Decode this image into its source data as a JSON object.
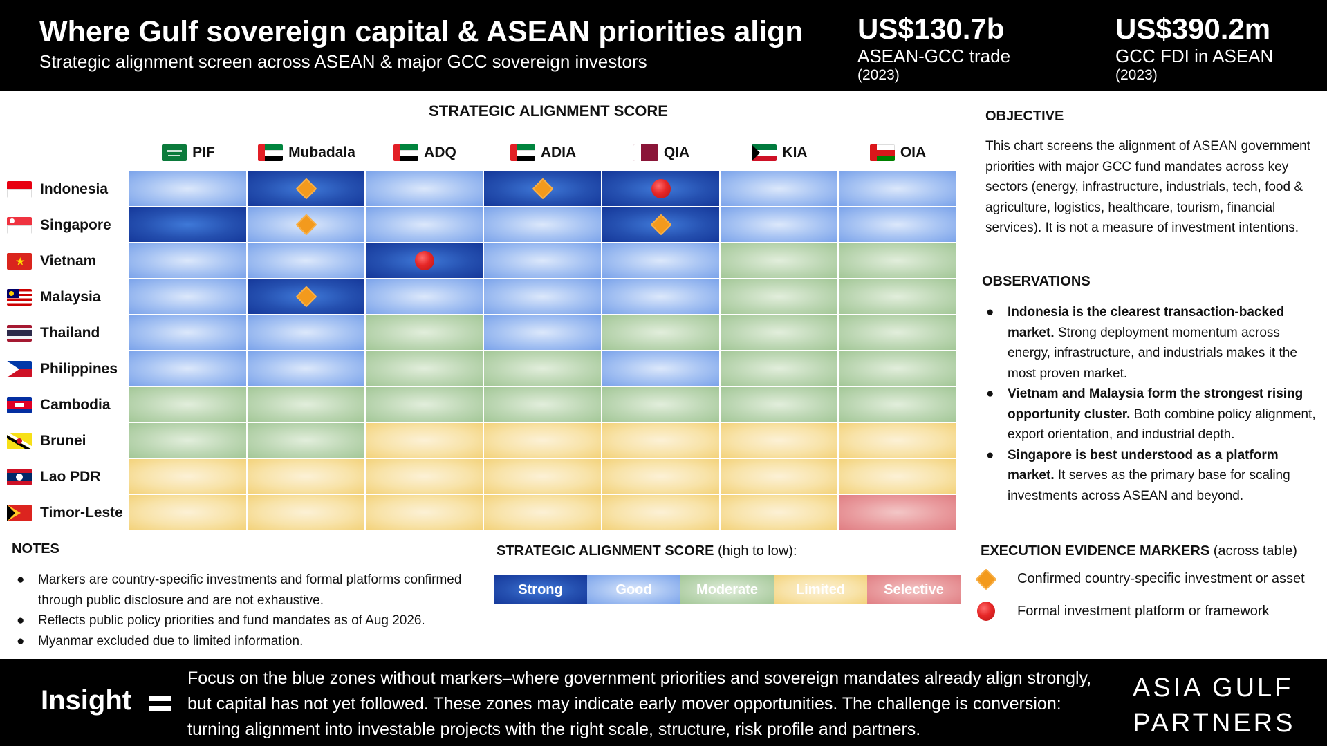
{
  "header": {
    "title": "Where Gulf sovereign capital & ASEAN priorities align",
    "subtitle": "Strategic alignment screen across ASEAN & major GCC sovereign investors",
    "stats": [
      {
        "value": "US$130.7b",
        "label": "ASEAN-GCC trade",
        "year": "(2023)"
      },
      {
        "value": "US$390.2m",
        "label": "GCC FDI in ASEAN",
        "year": "(2023)"
      }
    ]
  },
  "chart_data": {
    "type": "heatmap",
    "title": "STRATEGIC ALIGNMENT SCORE",
    "columns": [
      "PIF",
      "Mubadala",
      "ADQ",
      "ADIA",
      "QIA",
      "KIA",
      "OIA"
    ],
    "rows": [
      "Indonesia",
      "Singapore",
      "Vietnam",
      "Malaysia",
      "Thailand",
      "Philippines",
      "Cambodia",
      "Brunei",
      "Lao PDR",
      "Timor-Leste"
    ],
    "scale": [
      "Strong",
      "Good",
      "Moderate",
      "Limited",
      "Selective"
    ],
    "scores": [
      [
        "Good",
        "Strong",
        "Good",
        "Strong",
        "Strong",
        "Good",
        "Good"
      ],
      [
        "Strong",
        "Good",
        "Good",
        "Good",
        "Strong",
        "Good",
        "Good"
      ],
      [
        "Good",
        "Good",
        "Strong",
        "Good",
        "Good",
        "Moderate",
        "Moderate"
      ],
      [
        "Good",
        "Strong",
        "Good",
        "Good",
        "Good",
        "Moderate",
        "Moderate"
      ],
      [
        "Good",
        "Good",
        "Moderate",
        "Good",
        "Moderate",
        "Moderate",
        "Moderate"
      ],
      [
        "Good",
        "Good",
        "Moderate",
        "Moderate",
        "Good",
        "Moderate",
        "Moderate"
      ],
      [
        "Moderate",
        "Moderate",
        "Moderate",
        "Moderate",
        "Moderate",
        "Moderate",
        "Moderate"
      ],
      [
        "Moderate",
        "Moderate",
        "Limited",
        "Limited",
        "Limited",
        "Limited",
        "Limited"
      ],
      [
        "Limited",
        "Limited",
        "Limited",
        "Limited",
        "Limited",
        "Limited",
        "Limited"
      ],
      [
        "Limited",
        "Limited",
        "Limited",
        "Limited",
        "Limited",
        "Limited",
        "Selective"
      ]
    ],
    "markers": [
      {
        "row": "Indonesia",
        "column": "Mubadala",
        "type": "asset"
      },
      {
        "row": "Indonesia",
        "column": "ADIA",
        "type": "asset"
      },
      {
        "row": "Indonesia",
        "column": "QIA",
        "type": "platform"
      },
      {
        "row": "Singapore",
        "column": "Mubadala",
        "type": "asset"
      },
      {
        "row": "Singapore",
        "column": "QIA",
        "type": "asset"
      },
      {
        "row": "Vietnam",
        "column": "ADQ",
        "type": "platform"
      },
      {
        "row": "Malaysia",
        "column": "Mubadala",
        "type": "asset"
      }
    ],
    "colors": {
      "Strong": "#2550b0",
      "Good": "#a8c4f3",
      "Moderate": "#b9d5ae",
      "Limited": "#f8e0a2",
      "Selective": "#e8989c"
    }
  },
  "column_flags": [
    "saudi-arabia-flag",
    "uae-flag",
    "uae-flag",
    "uae-flag",
    "qatar-flag",
    "kuwait-flag",
    "oman-flag"
  ],
  "row_flags": [
    "indonesia-flag",
    "singapore-flag",
    "vietnam-flag",
    "malaysia-flag",
    "thailand-flag",
    "philippines-flag",
    "cambodia-flag",
    "brunei-flag",
    "laos-flag",
    "timor-leste-flag"
  ],
  "objective": {
    "heading": "OBJECTIVE",
    "text": "This chart screens the alignment of ASEAN government priorities with major GCC fund mandates across key sectors (energy, infrastructure, industrials, tech, food & agriculture, logistics, healthcare, tourism, financial services). It is not a measure of investment intentions."
  },
  "observations": {
    "heading": "OBSERVATIONS",
    "bullet": "●",
    "items": [
      {
        "bold": "Indonesia is the clearest transaction-backed market.",
        "text": " Strong deployment momentum across energy, infrastructure, and industrials makes it the most proven market."
      },
      {
        "bold": "Vietnam and Malaysia form the strongest rising opportunity cluster.",
        "text": " Both combine policy alignment, export orientation, and industrial depth."
      },
      {
        "bold": "Singapore is best understood as a platform market.",
        "text": " It serves as the primary base for scaling investments across ASEAN and beyond."
      }
    ]
  },
  "notes": {
    "heading": "NOTES",
    "bullet": "●",
    "items": [
      "Markers are country-specific investments and formal platforms confirmed through public disclosure and are not exhaustive.",
      "Reflects public policy priorities and fund mandates as of Aug 2026.",
      "Myanmar excluded due to limited information."
    ]
  },
  "legend": {
    "heading_bold": "STRATEGIC ALIGNMENT SCORE",
    "heading_rest": " (high to low):"
  },
  "evidence": {
    "heading_bold": "EXECUTION EVIDENCE MARKERS",
    "heading_rest": " (across table)",
    "asset_label": "Confirmed country-specific investment or asset",
    "platform_label": "Formal investment platform or framework"
  },
  "footer": {
    "insight_label": "Insight",
    "insight_text": "Focus on the blue zones without markers–where government priorities and sovereign mandates already align strongly, but capital has not yet followed. These zones may indicate early mover opportunities. The challenge is conversion: turning alignment into investable projects with the right scale, structure, risk profile and partners.",
    "brand_line1": "ASIA GULF",
    "brand_line2": "PARTNERS"
  }
}
